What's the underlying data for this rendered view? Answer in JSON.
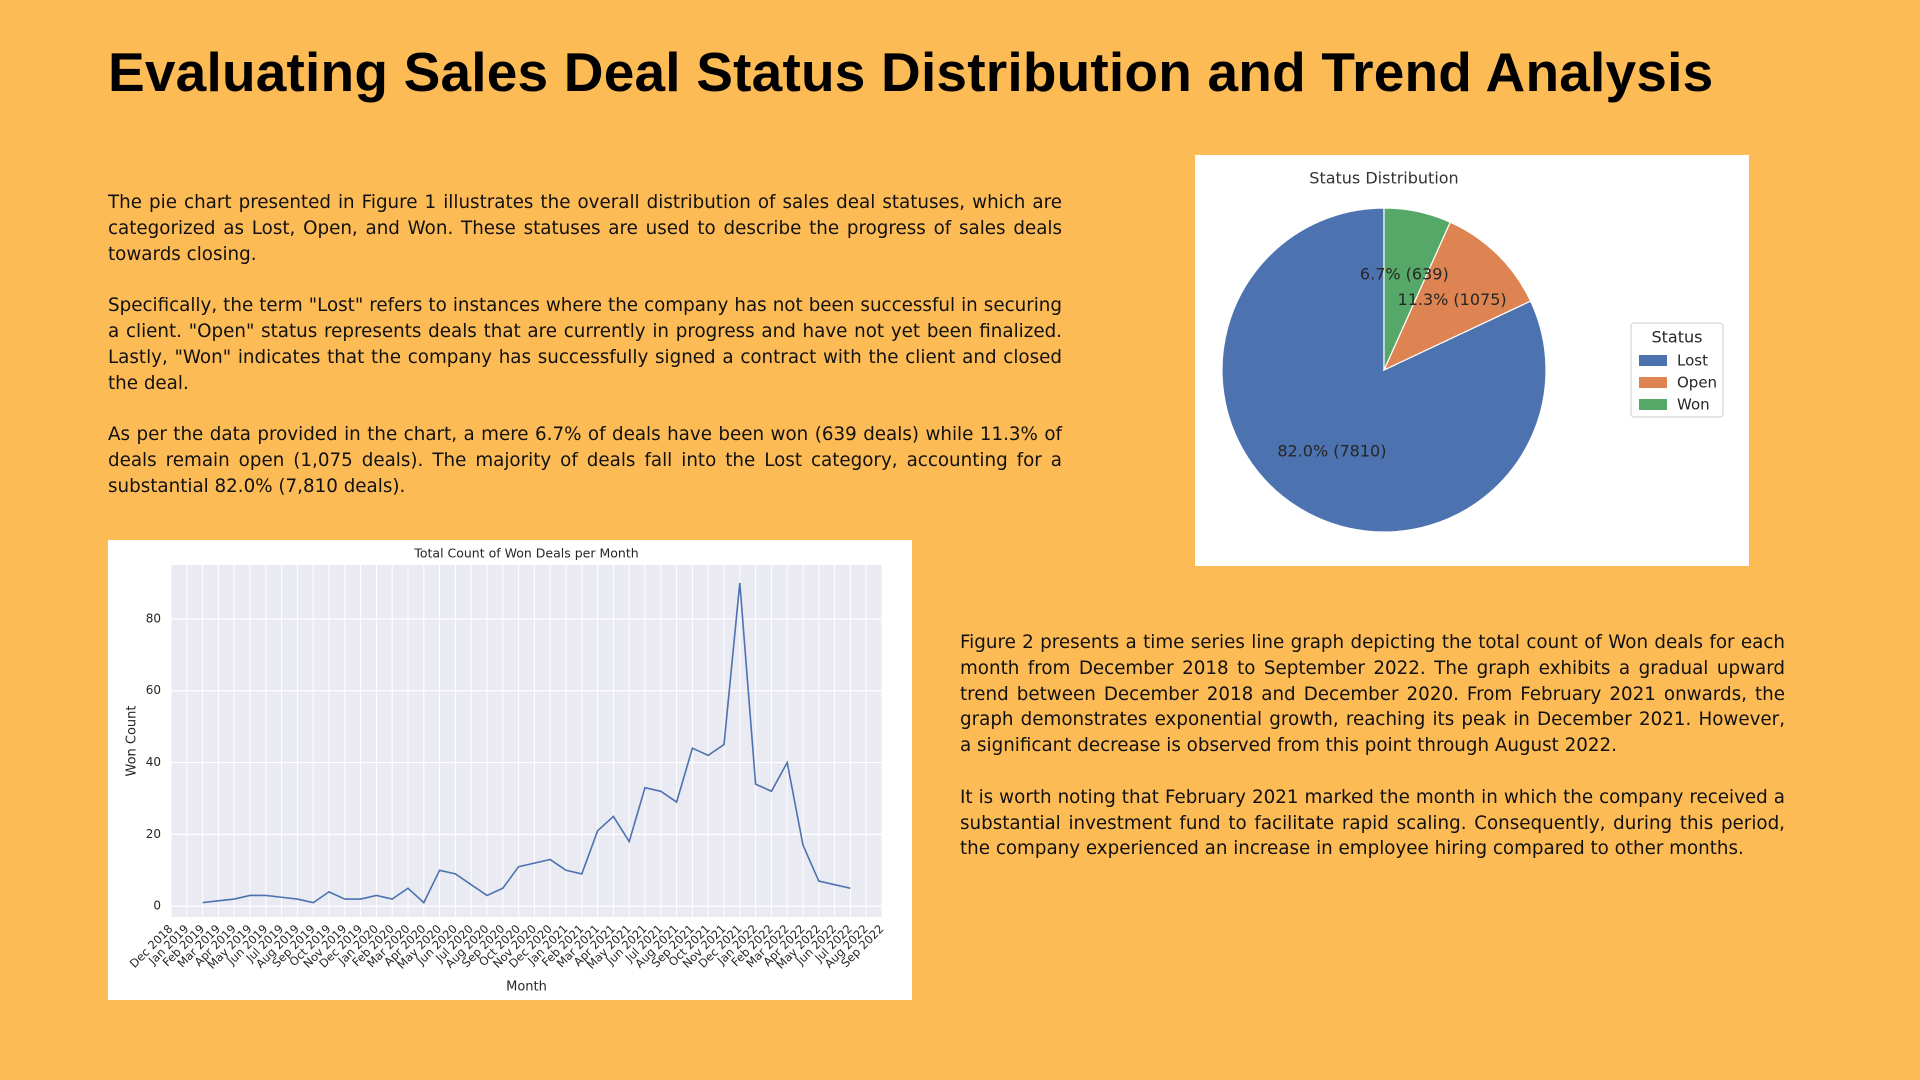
{
  "title": "Evaluating Sales Deal Status Distribution and Trend Analysis",
  "left_text": [
    "The pie chart presented in Figure 1 illustrates the overall distribution of sales deal statuses, which are categorized as Lost, Open, and Won. These statuses are used to describe the progress of sales deals towards closing.",
    "Specifically, the term \"Lost\" refers to instances where the company has not been successful in securing a client. \"Open\" status represents deals that are currently in progress and have not yet been finalized. Lastly, \"Won\" indicates that the company has successfully signed a contract with the client and closed the deal.",
    "As per the data provided in the chart, a mere 6.7% of deals have been won (639 deals) while 11.3% of deals remain open (1,075 deals). The majority of deals fall into the Lost category, accounting for a substantial 82.0% (7,810 deals)."
  ],
  "right_text": [
    "Figure 2 presents a time series line graph depicting the total count of Won deals for each month from December 2018 to September 2022. The graph exhibits a gradual upward trend between December 2018 and December 2020. From February 2021 onwards, the graph demonstrates exponential growth, reaching its peak in December 2021. However, a significant decrease is observed from this point through August 2022.",
    "It is worth noting that February 2021 marked the month in which the company received a substantial investment fund to facilitate rapid scaling. Consequently, during this period, the company experienced an increase in employee hiring compared to other months."
  ],
  "chart_data": [
    {
      "type": "pie",
      "title": "Status Distribution",
      "categories": [
        "Lost",
        "Open",
        "Won"
      ],
      "values": [
        82.0,
        11.3,
        6.7
      ],
      "value_labels": [
        "82.0% (7810)",
        "11.3% (1075)",
        "6.7% (639)"
      ],
      "colors": [
        "#4c72b0",
        "#dd8452",
        "#55a868"
      ],
      "start_angle": 90,
      "legend_title": "Status",
      "legend": "center right"
    },
    {
      "type": "line",
      "title": "Total Count of Won Deals per Month",
      "x_label": "Month",
      "y_label": "Won Count",
      "categories": [
        "Dec 2018",
        "Jan 2019",
        "Feb 2019",
        "Mar 2019",
        "Apr 2019",
        "May 2019",
        "Jun 2019",
        "Jul 2019",
        "Aug 2019",
        "Sep 2019",
        "Oct 2019",
        "Nov 2019",
        "Dec 2019",
        "Jan 2020",
        "Feb 2020",
        "Mar 2020",
        "Apr 2020",
        "May 2020",
        "Jun 2020",
        "Jul 2020",
        "Aug 2020",
        "Sep 2020",
        "Oct 2020",
        "Nov 2020",
        "Dec 2020",
        "Jan 2021",
        "Feb 2021",
        "Mar 2021",
        "Apr 2021",
        "May 2021",
        "Jun 2021",
        "Jul 2021",
        "Aug 2021",
        "Sep 2021",
        "Oct 2021",
        "Nov 2021",
        "Dec 2021",
        "Jan 2022",
        "Feb 2022",
        "Mar 2022",
        "Apr 2022",
        "May 2022",
        "Jun 2022",
        "Jul 2022",
        "Aug 2022",
        "Sep 2022"
      ],
      "values": [
        null,
        null,
        1,
        1.5,
        2,
        3,
        3,
        2.5,
        2,
        1,
        4,
        2,
        2,
        3,
        2,
        5,
        1,
        10,
        9,
        6,
        3,
        5,
        11,
        12,
        13,
        10,
        9,
        21,
        25,
        18,
        33,
        32,
        29,
        44,
        42,
        45,
        90,
        34,
        32,
        40,
        17,
        7,
        6,
        5,
        null,
        null
      ],
      "color": "#4c72b0",
      "ylim": [
        -3,
        95
      ],
      "yticks": [
        0,
        20,
        40,
        60,
        80
      ],
      "grid": true
    }
  ]
}
